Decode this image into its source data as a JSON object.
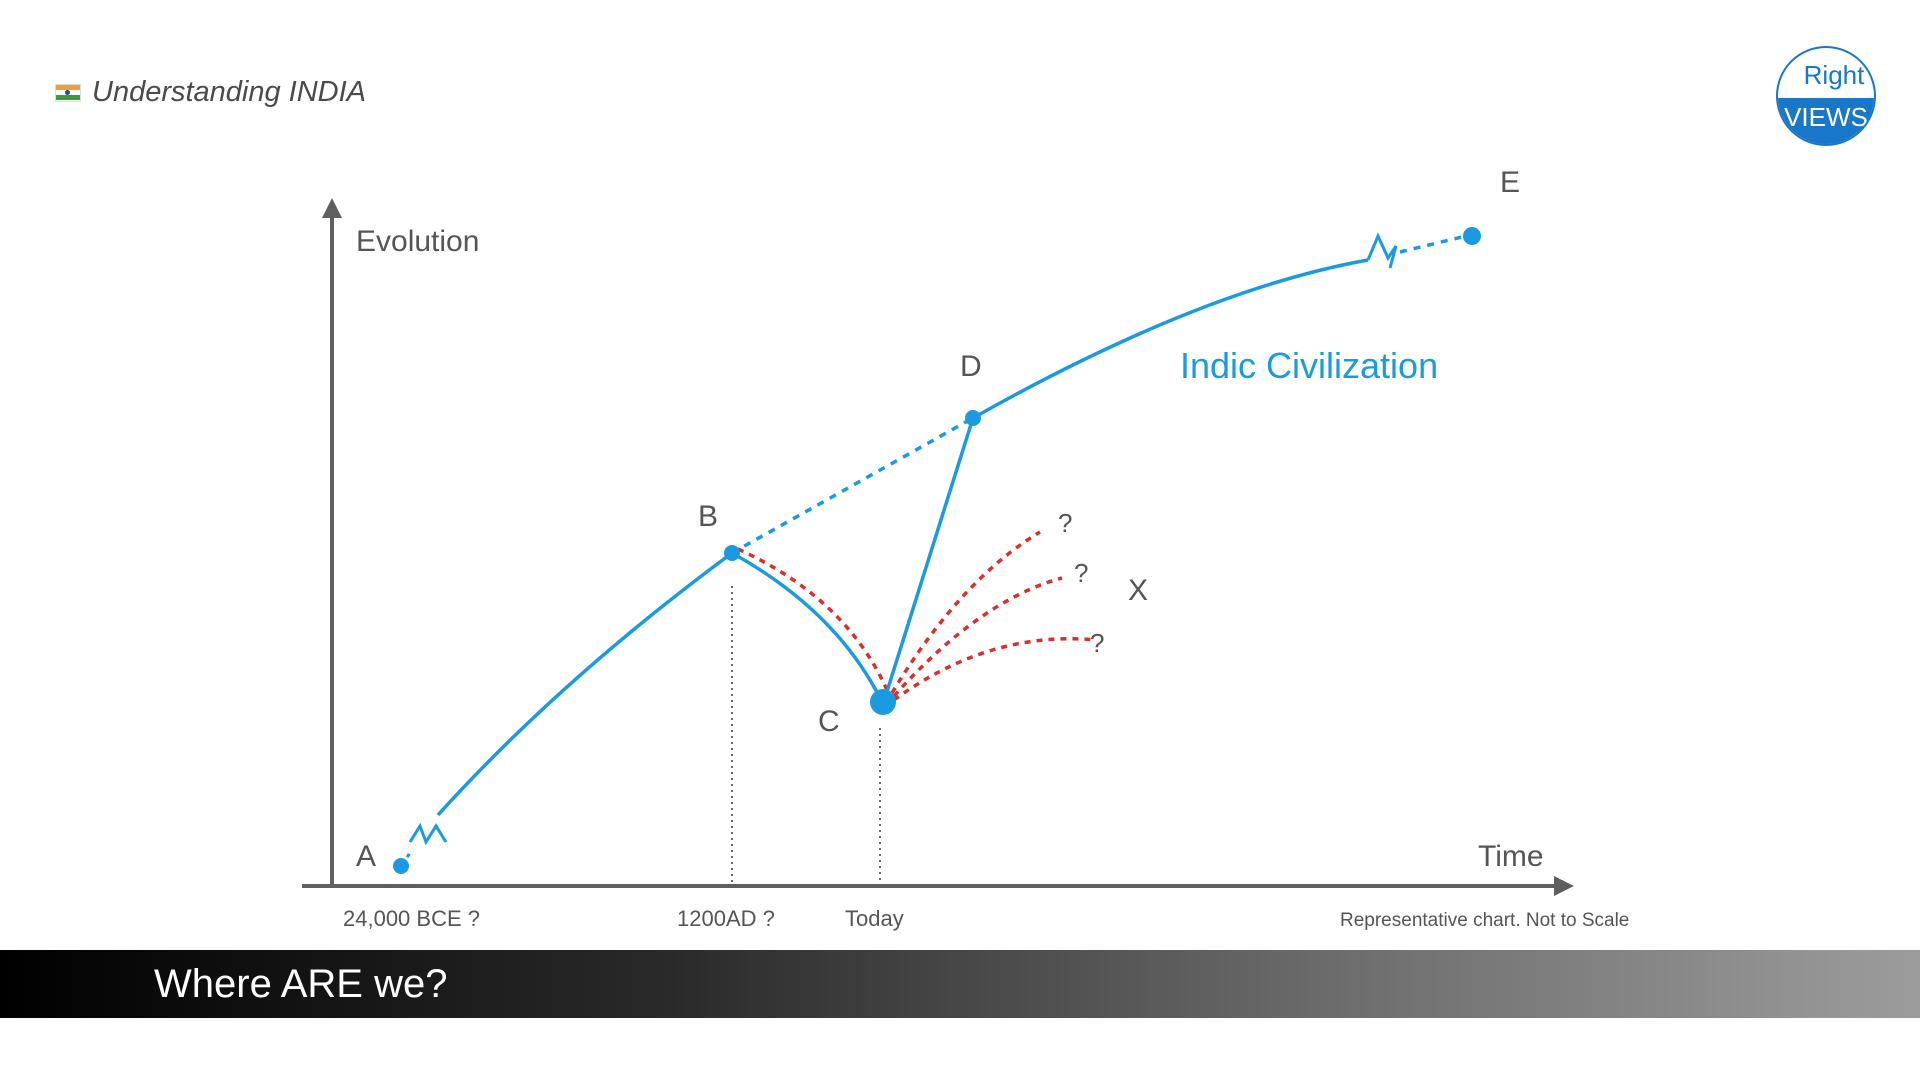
{
  "header": {
    "brand_text": "Understanding INDIA",
    "flag_icon": "india-flag-icon"
  },
  "logo": {
    "line1": "Right",
    "line2": "VIEWS",
    "color": "#1877c8"
  },
  "diagram": {
    "y_axis_label": "Evolution",
    "x_axis_label": "Time",
    "series_label": "Indic Civilization",
    "points": {
      "a": "A",
      "b": "B",
      "c": "C",
      "d": "D",
      "e": "E"
    },
    "divergence_label": "X",
    "question_marks": [
      "?",
      "?",
      "?"
    ],
    "ticks": {
      "start": "24,000 BCE ?",
      "mid": "1200AD ?",
      "today": "Today"
    },
    "footnote": "Representative chart. Not to Scale",
    "colors": {
      "main": "#1a9ae0",
      "alt": "#d9302c",
      "axis": "#5f5f5f"
    }
  },
  "banner": {
    "text": "Where ARE we?"
  }
}
